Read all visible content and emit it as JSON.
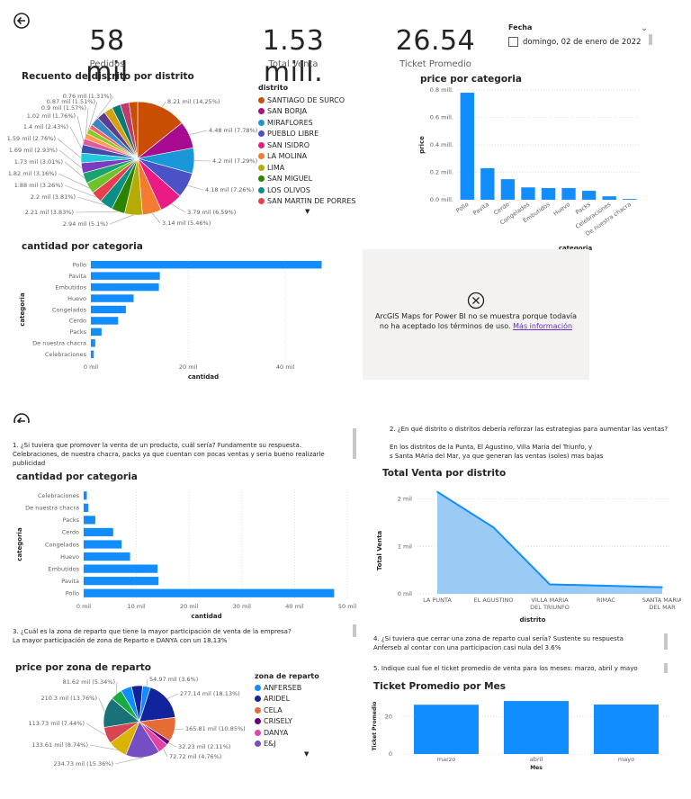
{
  "colors": {
    "blue": "#118dff",
    "lightblue": "#99cbf5",
    "pie": [
      "#c94e03",
      "#a70b8f",
      "#1a97d8",
      "#4a52c6",
      "#ea1b85",
      "#f47c30",
      "#b6aa05",
      "#2c8201",
      "#0a8e86",
      "#e83f4f",
      "#6ec32b",
      "#1aa26f",
      "#7d3ac1",
      "#22c8db",
      "#3b4ea8",
      "#e5589e",
      "#ff9f4a",
      "#8ac926",
      "#ee6a6a",
      "#3a87c8",
      "#5e3b8c",
      "#d4a00f",
      "#0b7a75",
      "#bf3b6d"
    ],
    "zona": [
      "#118dff",
      "#12239e",
      "#e66c37",
      "#6b007b",
      "#e044a7",
      "#744ec2"
    ]
  },
  "header": {
    "back_icon": "back-arrow-icon"
  },
  "kpis": [
    {
      "value": "58 mil",
      "label": "Pedidos"
    },
    {
      "value": "1.53 mill.",
      "label": "Total Venta"
    },
    {
      "value": "26.54",
      "label": "Ticket Promedio"
    }
  ],
  "slicer": {
    "title": "Fecha",
    "option": "domingo, 02 de enero de 2022"
  },
  "pie_distrito": {
    "title": "Recuento de distrito por distrito",
    "legend_title": "distrito",
    "legend": [
      "SANTIAGO DE SURCO",
      "SAN BORJA",
      "MIRAFLORES",
      "PUEBLO LIBRE",
      "SAN ISIDRO",
      "LA MOLINA",
      "LIMA",
      "SAN MIGUEL",
      "LOS OLIVOS",
      "SAN MARTIN DE PORRES"
    ],
    "labels": [
      "8.21 mil (14.25%)",
      "4.48 mil (7.78%)",
      "4.2 mil (7.29%)",
      "4.18 mil (7.26%)",
      "3.79 mil (6.59%)",
      "3.14 mil (5.46%)",
      "2.94 mil (5.1%)",
      "2.21 mil (3.83%)",
      "2.2 mil (3.81%)",
      "1.88 mil (3.26%)",
      "1.82 mil (3.16%)",
      "1.73 mil (3.01%)",
      "1.69 mil (2.93%)",
      "1.59 mil (2.76%)",
      "1.4 mil (2.43%)",
      "1.02 mil (1.76%)",
      "0.9 mil (1.57%)",
      "0.87 mil (1.51%)",
      "0.76 mil (1.31%)"
    ]
  },
  "map": {
    "message": "ArcGIS Maps for Power BI no se muestra porque todavía no ha aceptado los términos de uso.",
    "link": "Más información"
  },
  "questions": {
    "q1": "1. ¿Si tuviera que promover la venta de un producto, cuál sería? Fundamente su respuesta.",
    "a1": "Celebraciones, de nuestra chacra, packs ya que cuentan con pocas ventas y seria bueno realizarle publicidad",
    "q2": "2. ¿En qué distrito o distritos debería reforzar las estrategias para aumentar las ventas?",
    "a2a": "En los distritos de la Punta, El Agustino, Villa Maria del Triunfo, y",
    "a2b": "s Santa MAria del Mar, ya que generan las ventas (soles) mas bajas",
    "q3": "3. ¿Cuál es la zona de reparto que tiene la mayor participación de venta de la empresa?",
    "a3": "La mayor participación de zona de Reparto e DANYA con un 18.13%",
    "q4": "4. ¿Si tuviera que cerrar una zona de reparto cual sería? Sustente su respuesta",
    "a4": "Anferseb al contar con una participacion casi nula del 3.6%",
    "q5": "5. Indique cual fue el ticket promedio de venta para los meses: marzo, abril y mayo"
  },
  "zona": {
    "title": "price por zona de reparto",
    "legend_title": "zona de reparto",
    "legend": [
      "ANFERSEB",
      "ARIDEL",
      "CELA",
      "CRISELY",
      "DANYA",
      "E&J"
    ],
    "labels": [
      "54.97 mil (3.6%)",
      "277.14 mil (18.13%)",
      "165.81 mil (10.85%)",
      "32.23 mil (2.11%)",
      "72.72 mil (4.76%)",
      "234.73 mil (15.36%)",
      "133.61 mil (8.74%)",
      "113.73 mil (7.44%)",
      "210.3 mil (13.76%)",
      "81.62 mil (5.34%)"
    ]
  },
  "chart_data": [
    {
      "id": "price_por_categoria",
      "type": "bar",
      "title": "price por categoria",
      "xlabel": "categoria",
      "ylabel": "price",
      "categories": [
        "Pollo",
        "Pavita",
        "Cerdo",
        "Congelados",
        "Embutidos",
        "Huevo",
        "Packs",
        "Celebraciones",
        "De nuestra chacra"
      ],
      "values": [
        0.78,
        0.23,
        0.15,
        0.09,
        0.085,
        0.085,
        0.065,
        0.025,
        0.006
      ],
      "ylim": [
        0,
        0.8
      ],
      "yticks": [
        "0.0 mill.",
        "0.2 mill.",
        "0.4 mill.",
        "0.6 mill.",
        "0.8 mill."
      ]
    },
    {
      "id": "cantidad_por_categoria_top",
      "type": "bar",
      "orientation": "horizontal",
      "title": "cantidad por categoria",
      "xlabel": "cantidad",
      "ylabel": "categoria",
      "categories": [
        "Pollo",
        "Pavita",
        "Embutidos",
        "Huevo",
        "Congelados",
        "Cerdo",
        "Packs",
        "De nuestra chacra",
        "Celebraciones"
      ],
      "values": [
        47.5,
        14.2,
        14.0,
        8.8,
        7.2,
        5.6,
        2.2,
        0.9,
        0.6
      ],
      "xlim": [
        0,
        50
      ],
      "xticks": [
        "0 mil",
        "20 mil",
        "40 mil"
      ]
    },
    {
      "id": "cantidad_por_categoria_bottom",
      "type": "bar",
      "orientation": "horizontal",
      "title": "cantidad por categoria",
      "xlabel": "cantidad",
      "ylabel": "categoria",
      "categories": [
        "Celebraciones",
        "De nuestra chacra",
        "Packs",
        "Cerdo",
        "Congelados",
        "Huevo",
        "Embutidos",
        "Pavita",
        "Pollo"
      ],
      "values": [
        0.6,
        0.9,
        2.2,
        5.6,
        7.2,
        8.8,
        14.0,
        14.2,
        47.5
      ],
      "xlim": [
        0,
        50
      ],
      "xticks": [
        "0 mil",
        "10 mil",
        "20 mil",
        "30 mil",
        "40 mil",
        "50 mil"
      ]
    },
    {
      "id": "total_venta_por_distrito",
      "type": "area",
      "title": "Total Venta por distrito",
      "xlabel": "distrito",
      "ylabel": "Total Venta",
      "categories": [
        "LA PUNTA",
        "EL AGUSTINO",
        "VILLA MARIA DEL TRIUNFO",
        "RIMAC",
        "SANTA MARIA DEL MAR"
      ],
      "category_lines": [
        [
          "LA PUNTA"
        ],
        [
          "EL AGUSTINO"
        ],
        [
          "VILLA MARIA",
          "DEL TRIUNFO"
        ],
        [
          "RIMAC"
        ],
        [
          "SANTA MARIA",
          "DEL MAR"
        ]
      ],
      "values": [
        2.15,
        1.4,
        0.2,
        0.17,
        0.14
      ],
      "ylim": [
        0,
        2.2
      ],
      "yticks": [
        "0 mil",
        "1 mil",
        "2 mil"
      ]
    },
    {
      "id": "ticket_promedio_por_mes",
      "type": "bar",
      "title": "Ticket Promedio por Mes",
      "xlabel": "Mes",
      "ylabel": "Ticket Promedio",
      "categories": [
        "marzo",
        "abril",
        "mayo"
      ],
      "values": [
        26.5,
        28.5,
        26.6
      ],
      "ylim": [
        0,
        30
      ],
      "yticks": [
        "0",
        "20"
      ]
    }
  ]
}
